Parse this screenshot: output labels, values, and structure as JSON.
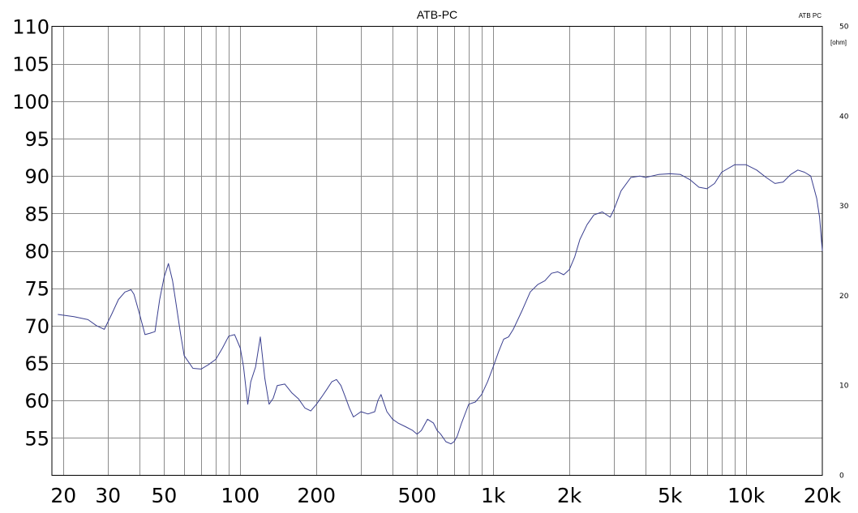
{
  "chart_data": {
    "type": "line",
    "title": "ATB-PC",
    "corner_label": "ATB PC",
    "x_scale": "log",
    "xlim": [
      18,
      20000
    ],
    "ylim": [
      50,
      110
    ],
    "y2lim": [
      0,
      50
    ],
    "y2_unit": "[ohm]",
    "grid": true,
    "line_color": "#3a3f8f",
    "x_tick_labels": [
      {
        "value": 20,
        "label": "20"
      },
      {
        "value": 30,
        "label": "30"
      },
      {
        "value": 50,
        "label": "50"
      },
      {
        "value": 100,
        "label": "100"
      },
      {
        "value": 200,
        "label": "200"
      },
      {
        "value": 500,
        "label": "500"
      },
      {
        "value": 1000,
        "label": "1k"
      },
      {
        "value": 2000,
        "label": "2k"
      },
      {
        "value": 5000,
        "label": "5k"
      },
      {
        "value": 10000,
        "label": "10k"
      },
      {
        "value": 20000,
        "label": "20k"
      }
    ],
    "y_tick_labels": [
      {
        "value": 110,
        "label": "110"
      },
      {
        "value": 105,
        "label": "105"
      },
      {
        "value": 100,
        "label": "100"
      },
      {
        "value": 95,
        "label": "95"
      },
      {
        "value": 90,
        "label": "90"
      },
      {
        "value": 85,
        "label": "85"
      },
      {
        "value": 80,
        "label": "80"
      },
      {
        "value": 75,
        "label": "75"
      },
      {
        "value": 70,
        "label": "70"
      },
      {
        "value": 65,
        "label": "65"
      },
      {
        "value": 60,
        "label": "60"
      },
      {
        "value": 55,
        "label": "55"
      }
    ],
    "y2_tick_labels": [
      {
        "value": 50,
        "label": "50"
      },
      {
        "value": 40,
        "label": "40"
      },
      {
        "value": 30,
        "label": "30"
      },
      {
        "value": 20,
        "label": "20"
      },
      {
        "value": 10,
        "label": "10"
      },
      {
        "value": 0,
        "label": "0"
      }
    ],
    "series": [
      {
        "x": [
          19,
          22,
          25,
          27,
          29,
          31,
          33,
          35,
          37,
          38,
          40,
          42,
          44,
          46,
          48,
          50,
          52,
          54,
          56,
          58,
          60,
          65,
          70,
          75,
          80,
          85,
          90,
          95,
          100,
          103,
          107,
          110,
          115,
          120,
          125,
          130,
          135,
          140,
          150,
          160,
          170,
          180,
          190,
          200,
          210,
          220,
          230,
          240,
          250,
          260,
          270,
          280,
          300,
          320,
          340,
          350,
          360,
          380,
          400,
          420,
          450,
          480,
          500,
          520,
          550,
          580,
          600,
          620,
          650,
          680,
          700,
          720,
          750,
          780,
          800,
          850,
          900,
          950,
          1000,
          1050,
          1100,
          1150,
          1200,
          1300,
          1400,
          1500,
          1600,
          1700,
          1800,
          1900,
          2000,
          2100,
          2200,
          2350,
          2500,
          2700,
          2900,
          3000,
          3200,
          3500,
          3800,
          4000,
          4500,
          5000,
          5500,
          6000,
          6500,
          7000,
          7500,
          8000,
          9000,
          10000,
          11000,
          12000,
          13000,
          14000,
          15000,
          16000,
          17000,
          18000,
          18500,
          19000,
          19500,
          20000
        ],
        "y": [
          71.5,
          71.2,
          70.8,
          70,
          69.5,
          71.5,
          73.5,
          74.5,
          74.8,
          74.2,
          71.5,
          68.8,
          69,
          69.2,
          73.5,
          76.5,
          78.3,
          76,
          72.5,
          69,
          66,
          64.3,
          64.2,
          64.8,
          65.5,
          67,
          68.6,
          68.8,
          67,
          64.5,
          59.5,
          62.5,
          64.5,
          68.5,
          63,
          59.5,
          60.3,
          62,
          62.2,
          61,
          60.2,
          59,
          58.6,
          59.5,
          60.5,
          61.5,
          62.5,
          62.8,
          62,
          60.5,
          59,
          57.8,
          58.5,
          58.2,
          58.5,
          60,
          60.8,
          58.5,
          57.5,
          57,
          56.5,
          56,
          55.5,
          56,
          57.5,
          57,
          56,
          55.5,
          54.5,
          54.2,
          54.5,
          55.2,
          57,
          58.5,
          59.5,
          59.8,
          60.8,
          62.5,
          64.5,
          66.5,
          68.2,
          68.5,
          69.5,
          72,
          74.5,
          75.5,
          76,
          77,
          77.2,
          76.8,
          77.5,
          79.2,
          81.5,
          83.5,
          84.8,
          85.2,
          84.5,
          85.5,
          88,
          89.8,
          90,
          89.8,
          90.2,
          90.3,
          90.2,
          89.5,
          88.5,
          88.3,
          89,
          90.5,
          91.5,
          91.5,
          90.8,
          89.8,
          89,
          89.2,
          90.2,
          90.8,
          90.5,
          90,
          88.5,
          87,
          84.5,
          80
        ]
      }
    ]
  }
}
